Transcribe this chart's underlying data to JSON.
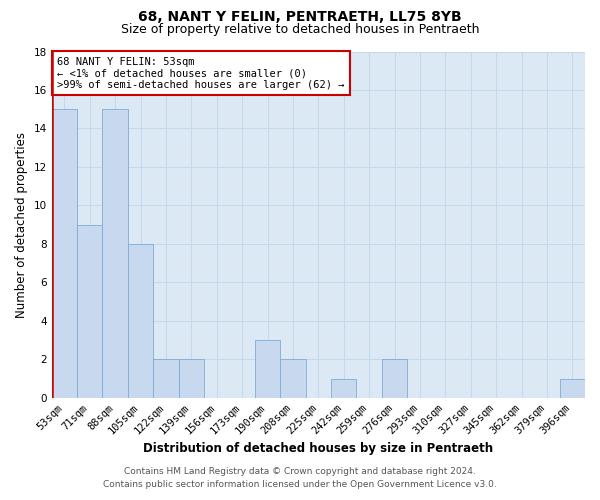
{
  "title1": "68, NANT Y FELIN, PENTRAETH, LL75 8YB",
  "title2": "Size of property relative to detached houses in Pentraeth",
  "xlabel": "Distribution of detached houses by size in Pentraeth",
  "ylabel": "Number of detached properties",
  "bin_labels": [
    "53sqm",
    "71sqm",
    "88sqm",
    "105sqm",
    "122sqm",
    "139sqm",
    "156sqm",
    "173sqm",
    "190sqm",
    "208sqm",
    "225sqm",
    "242sqm",
    "259sqm",
    "276sqm",
    "293sqm",
    "310sqm",
    "327sqm",
    "345sqm",
    "362sqm",
    "379sqm",
    "396sqm"
  ],
  "bar_heights": [
    15,
    9,
    15,
    8,
    2,
    2,
    0,
    0,
    3,
    2,
    0,
    1,
    0,
    2,
    0,
    0,
    0,
    0,
    0,
    0,
    1
  ],
  "bar_color": "#c8d9ef",
  "bar_edge_color": "#7aadd4",
  "annotation_title": "68 NANT Y FELIN: 53sqm",
  "annotation_line1": "← <1% of detached houses are smaller (0)",
  "annotation_line2": ">99% of semi-detached houses are larger (62) →",
  "annotation_box_facecolor": "#ffffff",
  "annotation_box_edgecolor": "#cc0000",
  "red_spine_color": "#cc0000",
  "ylim": [
    0,
    18
  ],
  "yticks": [
    0,
    2,
    4,
    6,
    8,
    10,
    12,
    14,
    16,
    18
  ],
  "footer_line1": "Contains HM Land Registry data © Crown copyright and database right 2024.",
  "footer_line2": "Contains public sector information licensed under the Open Government Licence v3.0.",
  "figure_bg_color": "#ffffff",
  "plot_bg_color": "#dce9f5",
  "grid_color": "#c5d8ee",
  "title1_fontsize": 10,
  "title2_fontsize": 9,
  "axis_label_fontsize": 8.5,
  "tick_fontsize": 7.5,
  "annotation_fontsize": 7.5,
  "footer_fontsize": 6.5
}
